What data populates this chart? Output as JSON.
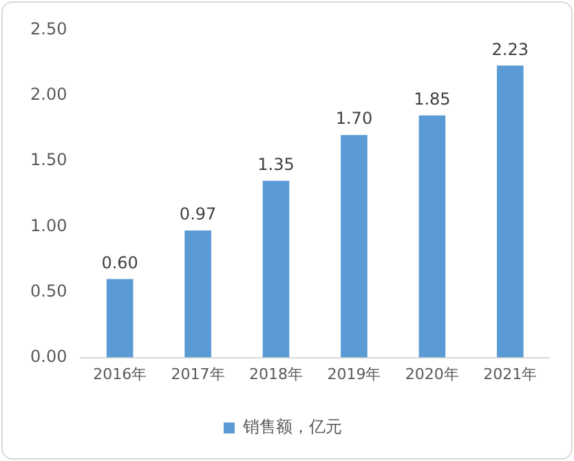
{
  "chart_data": {
    "type": "bar",
    "categories": [
      "2016年",
      "2017年",
      "2018年",
      "2019年",
      "2020年",
      "2021年"
    ],
    "series": [
      {
        "name": "销售额，亿元",
        "color": "#5b9bd5",
        "values": [
          0.6,
          0.97,
          1.35,
          1.7,
          1.85,
          2.23
        ],
        "value_labels": [
          "0.60",
          "0.97",
          "1.35",
          "1.70",
          "1.85",
          "2.23"
        ]
      }
    ],
    "ylim": [
      0,
      2.5
    ],
    "yticks": [
      {
        "value": 0,
        "label": "0.00"
      },
      {
        "value": 0.5,
        "label": "0.50"
      },
      {
        "value": 1,
        "label": "1.00"
      },
      {
        "value": 1.5,
        "label": "1.50"
      },
      {
        "value": 2,
        "label": "2.00"
      },
      {
        "value": 2.5,
        "label": "2.50"
      }
    ],
    "grid": false,
    "legend": "bottom"
  }
}
